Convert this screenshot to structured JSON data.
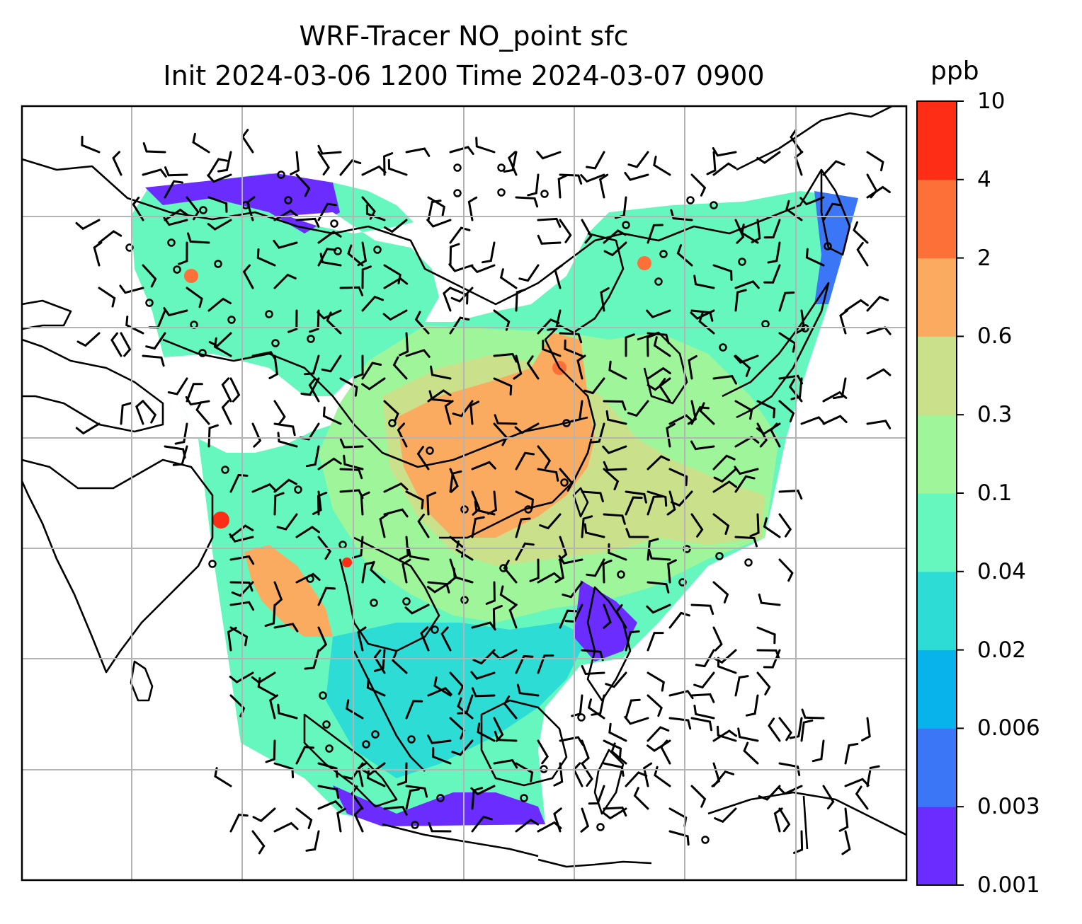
{
  "title": {
    "line1": "WRF-Tracer NO_point sfc",
    "line2": "Init 2024-03-06 1200 Time 2024-03-07 0900"
  },
  "colorbar": {
    "unit": "ppb",
    "ticks": [
      "0.001",
      "0.003",
      "0.006",
      "0.02",
      "0.04",
      "0.1",
      "0.3",
      "0.6",
      "2",
      "4",
      "10"
    ],
    "colors": [
      "#6a2cff",
      "#3a76f5",
      "#08b2ea",
      "#2ddcd4",
      "#66f7bf",
      "#9ef59a",
      "#cbe08a",
      "#fbab5f",
      "#fd7138",
      "#fe2d16"
    ]
  },
  "map": {
    "type": "filled-contour with wind barbs",
    "gridlines": true,
    "coastline_color": "#000000",
    "gridline_color": "#b4b4b4"
  }
}
